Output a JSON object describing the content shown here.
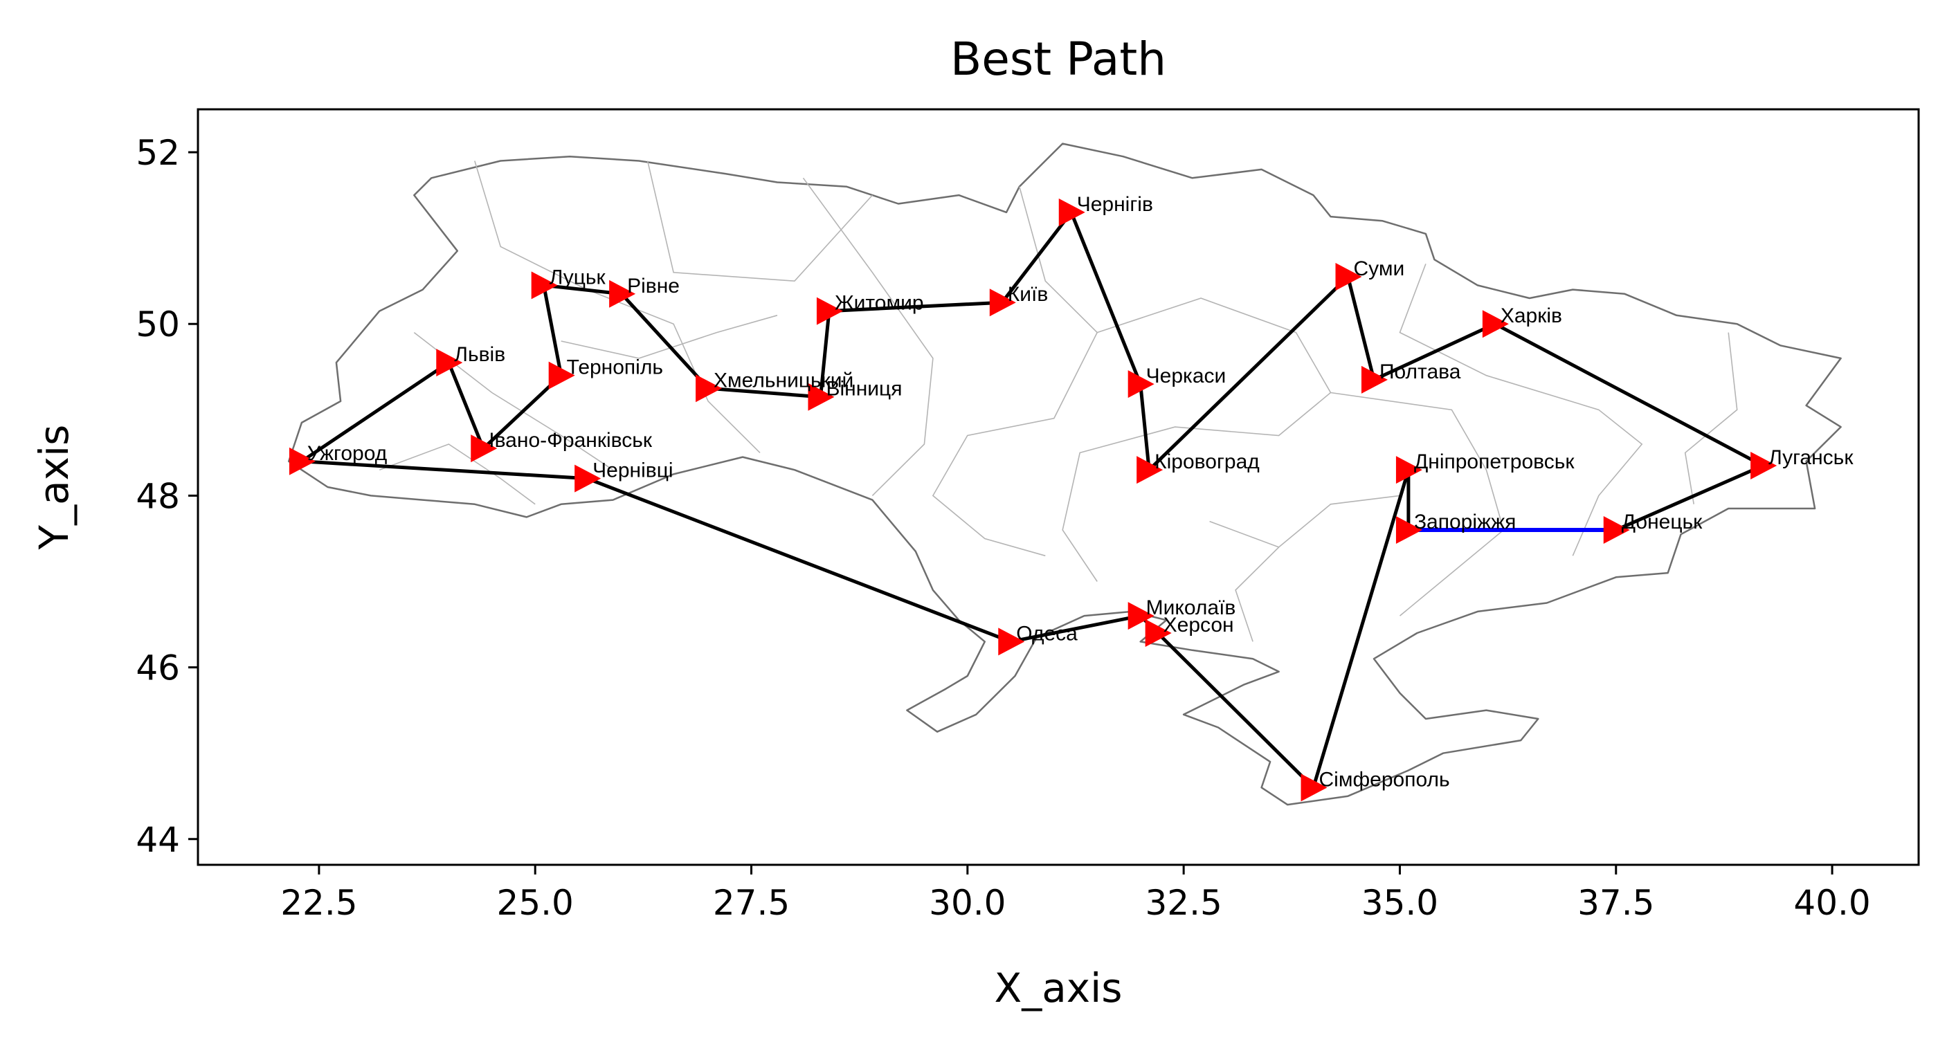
{
  "chart_data": {
    "type": "line",
    "title": "Best Path",
    "xlabel": "X_axis",
    "ylabel": "Y_axis",
    "xlim": [
      21.1,
      41.0
    ],
    "ylim": [
      43.7,
      52.5
    ],
    "xticks": [
      22.5,
      25.0,
      27.5,
      30.0,
      32.5,
      35.0,
      37.5,
      40.0
    ],
    "yticks": [
      44,
      46,
      48,
      50,
      52
    ],
    "xtick_labels": [
      "22.5",
      "25.0",
      "27.5",
      "30.0",
      "32.5",
      "35.0",
      "37.5",
      "40.0"
    ],
    "ytick_labels": [
      "44",
      "46",
      "48",
      "50",
      "52"
    ],
    "grid": false,
    "background": "map of Ukraine with oblast borders",
    "colors": {
      "path": "#000000",
      "closing_segment": "#0000ff",
      "marker": "#ff0000",
      "map_border": "#6e6e6e",
      "map_inner_border": "#b4b4b4"
    },
    "cities": [
      {
        "name": "Ужгород",
        "x": 22.3,
        "y": 48.4
      },
      {
        "name": "Львів",
        "x": 24.0,
        "y": 49.55
      },
      {
        "name": "Івано-Франківськ",
        "x": 24.4,
        "y": 48.55
      },
      {
        "name": "Тернопіль",
        "x": 25.3,
        "y": 49.4
      },
      {
        "name": "Луцьк",
        "x": 25.1,
        "y": 50.45
      },
      {
        "name": "Рівне",
        "x": 26.0,
        "y": 50.35
      },
      {
        "name": "Хмельницький",
        "x": 27.0,
        "y": 49.25
      },
      {
        "name": "Вінниця",
        "x": 28.3,
        "y": 49.15
      },
      {
        "name": "Житомир",
        "x": 28.4,
        "y": 50.15
      },
      {
        "name": "Київ",
        "x": 30.4,
        "y": 50.25
      },
      {
        "name": "Чернігів",
        "x": 31.2,
        "y": 51.3
      },
      {
        "name": "Черкаси",
        "x": 32.0,
        "y": 49.3
      },
      {
        "name": "Кіровоград",
        "x": 32.1,
        "y": 48.3
      },
      {
        "name": "Суми",
        "x": 34.4,
        "y": 50.55
      },
      {
        "name": "Полтава",
        "x": 34.7,
        "y": 49.35
      },
      {
        "name": "Харків",
        "x": 36.1,
        "y": 50.0
      },
      {
        "name": "Луганськ",
        "x": 39.2,
        "y": 48.35
      },
      {
        "name": "Донецьк",
        "x": 37.5,
        "y": 47.6
      },
      {
        "name": "Запоріжжя",
        "x": 35.1,
        "y": 47.6
      },
      {
        "name": "Дніпропетровськ",
        "x": 35.1,
        "y": 48.3
      },
      {
        "name": "Сімферополь",
        "x": 34.0,
        "y": 44.6
      },
      {
        "name": "Херсон",
        "x": 32.2,
        "y": 46.4
      },
      {
        "name": "Миколаїв",
        "x": 32.0,
        "y": 46.6
      },
      {
        "name": "Одеса",
        "x": 30.5,
        "y": 46.3
      },
      {
        "name": "Чернівці",
        "x": 25.6,
        "y": 48.2
      }
    ],
    "path_order": [
      "Ужгород",
      "Львів",
      "Івано-Франківськ",
      "Тернопіль",
      "Луцьк",
      "Рівне",
      "Хмельницький",
      "Вінниця",
      "Житомир",
      "Київ",
      "Чернігів",
      "Черкаси",
      "Кіровоград",
      "Суми",
      "Полтава",
      "Харків",
      "Луганськ",
      "Донецьк",
      "Запоріжжя",
      "Дніпропетровськ",
      "Сімферополь",
      "Херсон",
      "Миколаїв",
      "Одеса",
      "Чернівці",
      "Ужгород"
    ],
    "closing_segment": [
      "Донецьк",
      "Запоріжжя"
    ],
    "map_outline": [
      [
        22.15,
        48.4
      ],
      [
        22.6,
        48.1
      ],
      [
        23.1,
        48.0
      ],
      [
        23.7,
        47.95
      ],
      [
        24.3,
        47.9
      ],
      [
        24.9,
        47.75
      ],
      [
        25.3,
        47.9
      ],
      [
        25.9,
        47.95
      ],
      [
        26.6,
        48.25
      ],
      [
        27.4,
        48.45
      ],
      [
        28.0,
        48.3
      ],
      [
        28.9,
        47.95
      ],
      [
        29.4,
        47.35
      ],
      [
        29.6,
        46.9
      ],
      [
        29.9,
        46.55
      ],
      [
        30.2,
        46.3
      ],
      [
        30.0,
        45.9
      ],
      [
        29.75,
        45.75
      ],
      [
        29.3,
        45.5
      ],
      [
        29.65,
        45.25
      ],
      [
        30.1,
        45.45
      ],
      [
        30.55,
        45.9
      ],
      [
        30.8,
        46.35
      ],
      [
        31.35,
        46.6
      ],
      [
        31.9,
        46.65
      ],
      [
        32.3,
        46.55
      ],
      [
        32.0,
        46.3
      ],
      [
        32.6,
        46.2
      ],
      [
        33.3,
        46.1
      ],
      [
        33.6,
        45.95
      ],
      [
        33.2,
        45.8
      ],
      [
        32.5,
        45.45
      ],
      [
        32.9,
        45.3
      ],
      [
        33.5,
        44.9
      ],
      [
        33.4,
        44.6
      ],
      [
        33.7,
        44.4
      ],
      [
        34.4,
        44.5
      ],
      [
        35.1,
        44.8
      ],
      [
        35.5,
        45.0
      ],
      [
        36.4,
        45.15
      ],
      [
        36.6,
        45.4
      ],
      [
        36.0,
        45.5
      ],
      [
        35.3,
        45.4
      ],
      [
        35.0,
        45.7
      ],
      [
        34.7,
        46.1
      ],
      [
        35.2,
        46.4
      ],
      [
        35.9,
        46.65
      ],
      [
        36.7,
        46.75
      ],
      [
        37.5,
        47.05
      ],
      [
        38.1,
        47.1
      ],
      [
        38.25,
        47.55
      ],
      [
        38.8,
        47.85
      ],
      [
        39.8,
        47.85
      ],
      [
        39.7,
        48.4
      ],
      [
        40.1,
        48.8
      ],
      [
        39.7,
        49.05
      ],
      [
        40.1,
        49.6
      ],
      [
        39.4,
        49.75
      ],
      [
        38.9,
        50.0
      ],
      [
        38.2,
        50.1
      ],
      [
        37.6,
        50.35
      ],
      [
        37.0,
        50.4
      ],
      [
        36.5,
        50.3
      ],
      [
        35.9,
        50.45
      ],
      [
        35.4,
        50.75
      ],
      [
        35.3,
        51.05
      ],
      [
        34.8,
        51.2
      ],
      [
        34.2,
        51.25
      ],
      [
        34.0,
        51.5
      ],
      [
        33.4,
        51.8
      ],
      [
        32.6,
        51.7
      ],
      [
        31.8,
        51.95
      ],
      [
        31.1,
        52.1
      ],
      [
        30.6,
        51.6
      ],
      [
        30.45,
        51.3
      ],
      [
        29.9,
        51.5
      ],
      [
        29.2,
        51.4
      ],
      [
        28.6,
        51.6
      ],
      [
        27.8,
        51.65
      ],
      [
        27.2,
        51.75
      ],
      [
        26.2,
        51.9
      ],
      [
        25.4,
        51.95
      ],
      [
        24.6,
        51.9
      ],
      [
        23.8,
        51.7
      ],
      [
        23.6,
        51.5
      ],
      [
        24.1,
        50.85
      ],
      [
        23.7,
        50.4
      ],
      [
        23.2,
        50.15
      ],
      [
        22.7,
        49.55
      ],
      [
        22.75,
        49.1
      ],
      [
        22.3,
        48.85
      ]
    ]
  }
}
